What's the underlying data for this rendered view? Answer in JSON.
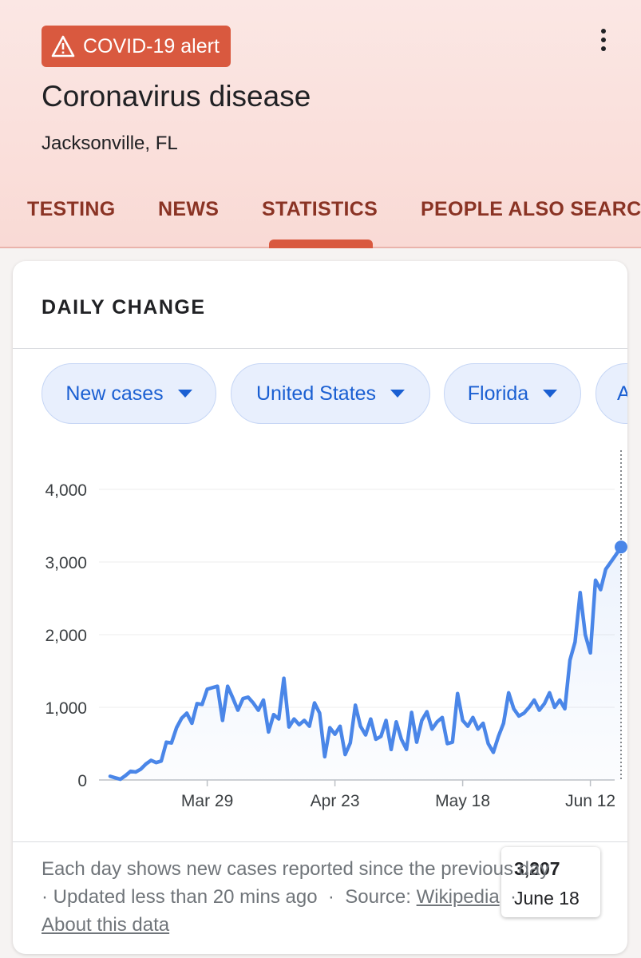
{
  "header": {
    "alert_label": "COVID-19 alert",
    "title": "Coronavirus disease",
    "location": "Jacksonville, FL",
    "tabs": [
      {
        "label": "TESTING"
      },
      {
        "label": "NEWS"
      },
      {
        "label": "STATISTICS"
      },
      {
        "label": "PEOPLE ALSO SEARCH FOR"
      }
    ],
    "active_tab": "STATISTICS"
  },
  "card": {
    "title": "DAILY CHANGE",
    "filters": [
      {
        "label": "New cases"
      },
      {
        "label": "United States"
      },
      {
        "label": "Florida"
      },
      {
        "label": "A"
      }
    ]
  },
  "tooltip": {
    "value": "3,207",
    "date": "June 18"
  },
  "footer": {
    "line1": "Each day shows new cases reported since the previous day",
    "updated": "· Updated less than 20 mins ago",
    "sep": "·",
    "source_label": "Source:",
    "source_link": "Wikipedia",
    "sep2": "·",
    "about_link": "About this data"
  },
  "colors": {
    "accent": "#d9593f",
    "tab_text": "#8a3324",
    "line": "#4a86e8",
    "chip_text": "#1a5fd2"
  },
  "chart_data": {
    "type": "line",
    "ylim": [
      0,
      4000
    ],
    "yticks": [
      "0",
      "1,000",
      "2,000",
      "3,000",
      "4,000"
    ],
    "xtick_labels": [
      {
        "label": "Mar 29",
        "day": 19
      },
      {
        "label": "Apr 23",
        "day": 44
      },
      {
        "label": "May 18",
        "day": 69
      },
      {
        "label": "Jun 12",
        "day": 94
      }
    ],
    "grid": true,
    "highlight_index": 100,
    "series": [
      {
        "values": [
          50,
          30,
          10,
          60,
          120,
          110,
          150,
          220,
          270,
          240,
          260,
          520,
          510,
          720,
          850,
          920,
          780,
          1050,
          1040,
          1250,
          1270,
          1290,
          820,
          1290,
          1130,
          960,
          1120,
          1140,
          1060,
          960,
          1100,
          660,
          900,
          840,
          1400,
          730,
          840,
          760,
          820,
          740,
          1060,
          920,
          320,
          720,
          630,
          740,
          350,
          510,
          1030,
          740,
          620,
          840,
          560,
          600,
          820,
          420,
          800,
          560,
          420,
          930,
          520,
          820,
          940,
          700,
          800,
          860,
          500,
          520,
          1190,
          820,
          740,
          860,
          700,
          780,
          500,
          380,
          600,
          780,
          1200,
          980,
          880,
          920,
          1000,
          1100,
          960,
          1050,
          1200,
          1000,
          1100,
          980,
          1650,
          1900,
          2580,
          2000,
          1750,
          2750,
          2620,
          2900,
          3000,
          3100,
          3207
        ]
      }
    ]
  }
}
